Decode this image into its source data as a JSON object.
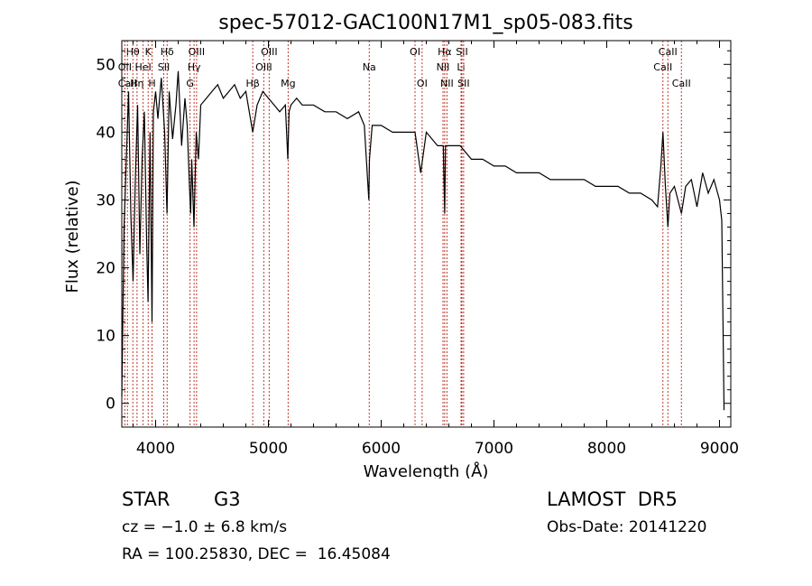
{
  "chart_data": {
    "type": "line",
    "title": "spec-57012-GAC100N17M1_sp05-083.fits",
    "xlabel": "Wavelength (Å)",
    "ylabel": "Flux (relative)",
    "xlim": [
      3700,
      9100
    ],
    "ylim": [
      -3.5,
      53.5
    ],
    "xticks": [
      4000,
      5000,
      6000,
      7000,
      8000,
      9000
    ],
    "yticks": [
      0,
      10,
      20,
      30,
      40,
      50
    ],
    "grid": false,
    "line_color": "#000000",
    "marker_color": "#c0392b",
    "series": [
      {
        "x": [
          3700,
          3720,
          3740,
          3760,
          3780,
          3800,
          3820,
          3840,
          3860,
          3880,
          3900,
          3920,
          3933,
          3950,
          3968,
          3980,
          4000,
          4020,
          4050,
          4080,
          4101,
          4120,
          4150,
          4180,
          4200,
          4230,
          4260,
          4280,
          4300,
          4310,
          4320,
          4340,
          4360,
          4380,
          4400,
          4450,
          4500,
          4550,
          4600,
          4650,
          4700,
          4750,
          4800,
          4861,
          4900,
          4950,
          5000,
          5050,
          5100,
          5150,
          5172,
          5183,
          5200,
          5250,
          5300,
          5400,
          5500,
          5600,
          5700,
          5800,
          5850,
          5890,
          5896,
          5920,
          6000,
          6100,
          6200,
          6300,
          6350,
          6400,
          6500,
          6550,
          6563,
          6570,
          6600,
          6700,
          6800,
          6900,
          7000,
          7100,
          7200,
          7300,
          7400,
          7500,
          7600,
          7700,
          7800,
          7900,
          8000,
          8100,
          8200,
          8300,
          8400,
          8450,
          8480,
          8498,
          8520,
          8542,
          8560,
          8600,
          8662,
          8700,
          8750,
          8800,
          8850,
          8900,
          8950,
          9000,
          9020,
          9040
        ],
        "y": [
          1,
          26,
          36,
          46,
          28,
          18,
          33,
          44,
          22,
          36,
          43,
          24,
          15,
          40,
          12,
          43,
          46,
          42,
          48,
          40,
          28,
          46,
          39,
          44,
          49,
          38,
          45,
          41,
          32,
          28,
          36,
          26,
          40,
          36,
          44,
          45,
          46,
          47,
          45,
          46,
          47,
          45,
          46,
          40,
          44,
          46,
          45,
          44,
          43,
          44,
          36,
          43,
          44,
          45,
          44,
          44,
          43,
          43,
          42,
          43,
          41,
          30,
          36,
          41,
          41,
          40,
          40,
          40,
          34,
          40,
          38,
          38,
          28,
          38,
          38,
          38,
          36,
          36,
          35,
          35,
          34,
          34,
          34,
          33,
          33,
          33,
          33,
          32,
          32,
          32,
          31,
          31,
          30,
          29,
          35,
          40,
          32,
          26,
          31,
          32,
          28,
          32,
          33,
          29,
          34,
          31,
          33,
          30,
          27,
          -1
        ]
      }
    ],
    "line_markers": [
      {
        "label": "Hθ",
        "x": 3798,
        "row": 1
      },
      {
        "label": "OII",
        "x": 3727,
        "row": 2
      },
      {
        "label": "CaII",
        "x": 3750,
        "row": 3
      },
      {
        "label": "Hη",
        "x": 3835,
        "row": 3
      },
      {
        "label": "HeI",
        "x": 3889,
        "row": 2
      },
      {
        "label": "K",
        "x": 3934,
        "row": 1
      },
      {
        "label": "H",
        "x": 3968,
        "row": 3
      },
      {
        "label": "SII",
        "x": 4072,
        "row": 2
      },
      {
        "label": "Hδ",
        "x": 4102,
        "row": 1
      },
      {
        "label": "G",
        "x": 4305,
        "row": 3
      },
      {
        "label": "Hγ",
        "x": 4341,
        "row": 2
      },
      {
        "label": "OIII",
        "x": 4363,
        "row": 1
      },
      {
        "label": "Hβ",
        "x": 4861,
        "row": 3
      },
      {
        "label": "OIII",
        "x": 4959,
        "row": 2
      },
      {
        "label": "OIII",
        "x": 5007,
        "row": 1
      },
      {
        "label": "Mg",
        "x": 5175,
        "row": 3
      },
      {
        "label": "Na",
        "x": 5894,
        "row": 2
      },
      {
        "label": "OI",
        "x": 6300,
        "row": 1
      },
      {
        "label": "OI",
        "x": 6363,
        "row": 3
      },
      {
        "label": "NII",
        "x": 6548,
        "row": 2
      },
      {
        "label": "Hα",
        "x": 6563,
        "row": 1
      },
      {
        "label": "NII",
        "x": 6583,
        "row": 3
      },
      {
        "label": "Li",
        "x": 6708,
        "row": 2
      },
      {
        "label": "SII",
        "x": 6716,
        "row": 1
      },
      {
        "label": "SII",
        "x": 6731,
        "row": 3
      },
      {
        "label": "CaII",
        "x": 8498,
        "row": 2
      },
      {
        "label": "CaII",
        "x": 8542,
        "row": 1
      },
      {
        "label": "CaII",
        "x": 8662,
        "row": 3
      }
    ]
  },
  "info": {
    "object_class": "STAR",
    "subclass": "G3",
    "survey": "LAMOST  DR5",
    "cz": "cz = −1.0 ± 6.8 km/s",
    "obs_date": "Obs-Date: 20141220",
    "coords": "RA = 100.25830, DEC =  16.45084"
  }
}
